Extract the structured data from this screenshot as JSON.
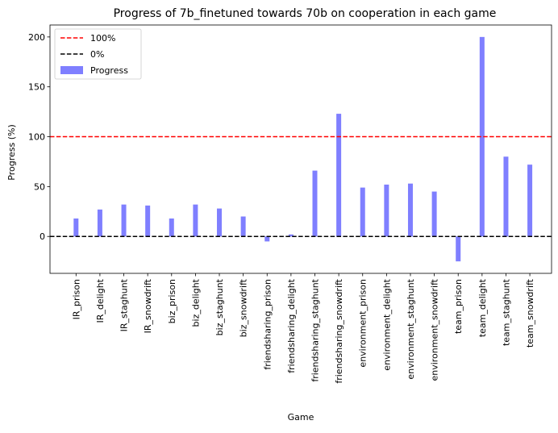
{
  "chart_data": {
    "type": "bar",
    "title": "Progress of 7b_finetuned towards 70b on cooperation in each game",
    "xlabel": "Game",
    "ylabel": "Progress (%)",
    "ylim": [
      -37,
      212
    ],
    "yticks": [
      0,
      50,
      100,
      150,
      200
    ],
    "grid": false,
    "legend_position": "top-left",
    "categories": [
      "IR_prison",
      "IR_delight",
      "IR_staghunt",
      "IR_snowdrift",
      "biz_prison",
      "biz_delight",
      "biz_staghunt",
      "biz_snowdrift",
      "friendsharing_prison",
      "friendsharing_delight",
      "friendsharing_staghunt",
      "friendsharing_snowdrift",
      "environment_prison",
      "environment_delight",
      "environment_staghunt",
      "environment_snowdrift",
      "team_prison",
      "team_delight",
      "team_staghunt",
      "team_snowdrift"
    ],
    "series": [
      {
        "name": "Progress",
        "color": "#7f7fff",
        "values": [
          18,
          27,
          32,
          31,
          18,
          32,
          28,
          20,
          -5,
          2,
          66,
          123,
          49,
          52,
          53,
          45,
          -25,
          200,
          80,
          72
        ]
      }
    ],
    "reference_lines": [
      {
        "name": "100%",
        "y": 100,
        "color": "#ff0000",
        "style": "dashed"
      },
      {
        "name": "0%",
        "y": 0,
        "color": "#000000",
        "style": "dashed"
      }
    ],
    "legend": [
      {
        "label": "100%",
        "kind": "line",
        "color": "#ff0000"
      },
      {
        "label": "0%",
        "kind": "line",
        "color": "#000000"
      },
      {
        "label": "Progress",
        "kind": "patch",
        "color": "#7f7fff"
      }
    ]
  }
}
